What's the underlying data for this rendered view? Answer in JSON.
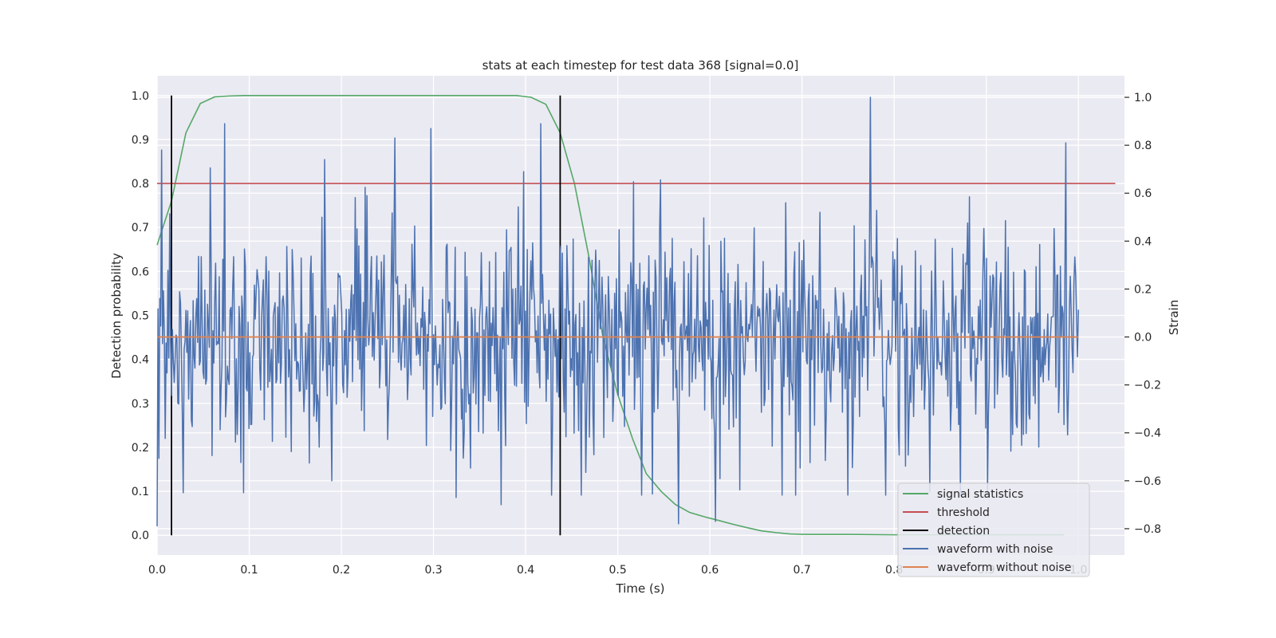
{
  "chart_data": {
    "type": "line",
    "title": "stats at each timestep for test data 368 [signal=0.0]",
    "xlabel": "Time (s)",
    "ylabel_left": "Detection probability",
    "ylabel_right": "Strain",
    "xlim": [
      0.0,
      1.05
    ],
    "ylim_left": [
      -0.045,
      1.045
    ],
    "ylim_right": [
      -0.91,
      1.09
    ],
    "x_ticks": [
      0.0,
      0.1,
      0.2,
      0.3,
      0.4,
      0.5,
      0.6,
      0.7,
      0.8,
      0.9,
      1.0
    ],
    "x_tick_labels": [
      "0.0",
      "0.1",
      "0.2",
      "0.3",
      "0.4",
      "0.5",
      "0.6",
      "0.7",
      "0.8",
      "0.9",
      "1.0"
    ],
    "y_left_ticks": [
      0.0,
      0.1,
      0.2,
      0.3,
      0.4,
      0.5,
      0.6,
      0.7,
      0.8,
      0.9,
      1.0
    ],
    "y_left_tick_labels": [
      "0.0",
      "0.1",
      "0.2",
      "0.3",
      "0.4",
      "0.5",
      "0.6",
      "0.7",
      "0.8",
      "0.9",
      "1.0"
    ],
    "y_right_ticks": [
      -0.8,
      -0.6,
      -0.4,
      -0.2,
      0.0,
      0.2,
      0.4,
      0.6,
      0.8,
      1.0
    ],
    "y_right_tick_labels": [
      "−0.8",
      "−0.6",
      "−0.4",
      "−0.2",
      "0.0",
      "0.2",
      "0.4",
      "0.6",
      "0.8",
      "1.0"
    ],
    "grid": true,
    "legend_position": "lower-right",
    "background": "#eaeaf2",
    "series": [
      {
        "name": "signal statistics",
        "axis": "left",
        "color": "#55a868",
        "x": [
          0.0,
          0.0156,
          0.03125,
          0.0469,
          0.0625,
          0.078,
          0.094,
          0.109,
          0.125,
          0.2,
          0.3,
          0.39,
          0.406,
          0.422,
          0.4375,
          0.453,
          0.469,
          0.484,
          0.5,
          0.516,
          0.531,
          0.547,
          0.5625,
          0.578,
          0.594,
          0.609,
          0.625,
          0.641,
          0.656,
          0.672,
          0.6875,
          0.703,
          0.75,
          0.8,
          0.9,
          0.984
        ],
        "y": [
          0.66,
          0.76,
          0.915,
          0.982,
          0.997,
          0.999,
          1.0,
          1.0,
          1.0,
          1.0,
          1.0,
          1.0,
          0.996,
          0.98,
          0.915,
          0.8,
          0.63,
          0.45,
          0.32,
          0.22,
          0.14,
          0.1,
          0.07,
          0.052,
          0.042,
          0.034,
          0.025,
          0.017,
          0.01,
          0.006,
          0.003,
          0.002,
          0.002,
          0.001,
          0.001,
          0.001
        ]
      },
      {
        "name": "threshold",
        "axis": "left",
        "color": "#c44e52",
        "x": [
          0.0,
          1.04
        ],
        "y": [
          0.8,
          0.8
        ]
      },
      {
        "name": "detection",
        "axis": "left",
        "color": "#000000",
        "segments": [
          {
            "x": 0.0156,
            "y0": 0.0,
            "y1": 1.0
          },
          {
            "x": 0.4375,
            "y0": 0.0,
            "y1": 1.0
          }
        ]
      },
      {
        "name": "waveform with noise",
        "axis": "right",
        "color": "#4c72b0",
        "x_start": 0.0,
        "x_end": 1.0,
        "highlights": [
          {
            "x": 0.005,
            "y": 0.78
          },
          {
            "x": 0.073,
            "y": 0.89
          },
          {
            "x": 0.182,
            "y": 0.74
          },
          {
            "x": 0.258,
            "y": 0.83
          },
          {
            "x": 0.297,
            "y": 0.87
          },
          {
            "x": 0.398,
            "y": 0.69
          },
          {
            "x": 0.416,
            "y": 0.89
          },
          {
            "x": 0.774,
            "y": 1.0
          },
          {
            "x": 0.986,
            "y": 0.81
          },
          {
            "x": 0.566,
            "y": -0.78
          },
          {
            "x": 0.606,
            "y": -0.77
          },
          {
            "x": 0.0,
            "y": -0.79
          },
          {
            "x": 0.325,
            "y": -0.67
          },
          {
            "x": 0.373,
            "y": -0.7
          },
          {
            "x": 0.19,
            "y": -0.6
          },
          {
            "x": 0.028,
            "y": -0.65
          },
          {
            "x": 0.094,
            "y": -0.65
          }
        ]
      },
      {
        "name": "waveform without noise",
        "axis": "right",
        "color": "#dd8452",
        "x": [
          0.0,
          1.0
        ],
        "y": [
          0.0,
          0.0
        ]
      }
    ]
  }
}
